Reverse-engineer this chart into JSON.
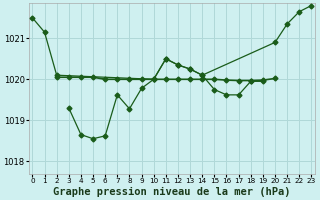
{
  "title": "Graphe pression niveau de la mer (hPa)",
  "background_color": "#cff0f0",
  "grid_color": "#b0d8d8",
  "line_color": "#1a5c1a",
  "ylim": [
    1017.7,
    1021.85
  ],
  "xlim": [
    -0.3,
    23.3
  ],
  "yticks": [
    1018,
    1019,
    1020,
    1021
  ],
  "xticks": [
    0,
    1,
    2,
    3,
    4,
    5,
    6,
    7,
    8,
    9,
    10,
    11,
    12,
    13,
    14,
    15,
    16,
    17,
    18,
    19,
    20,
    21,
    22,
    23
  ],
  "seriesA_x": [
    0,
    1,
    2,
    10,
    11,
    12,
    13,
    14,
    20,
    21,
    22,
    23
  ],
  "seriesA_y": [
    1021.5,
    1021.15,
    1020.1,
    1020.0,
    1020.5,
    1020.35,
    1020.25,
    1020.1,
    1020.9,
    1021.35,
    1021.65,
    1021.8
  ],
  "seriesB_x": [
    2,
    3,
    4,
    5,
    6,
    7,
    8,
    9,
    10,
    11,
    12,
    13,
    14,
    15,
    16,
    17,
    18,
    19,
    20
  ],
  "seriesB_y": [
    1020.05,
    1020.05,
    1020.05,
    1020.05,
    1020.0,
    1020.0,
    1020.0,
    1020.0,
    1020.0,
    1020.0,
    1020.0,
    1020.0,
    1020.0,
    1020.0,
    1019.98,
    1019.97,
    1019.97,
    1019.98,
    1020.02
  ],
  "seriesC_x": [
    3,
    4,
    5,
    6,
    7,
    8,
    9,
    10,
    11,
    12,
    13,
    14,
    15,
    16,
    17,
    18,
    19
  ],
  "seriesC_y": [
    1019.3,
    1018.65,
    1018.55,
    1018.62,
    1019.62,
    1019.28,
    1019.78,
    1020.0,
    1020.5,
    1020.35,
    1020.25,
    1020.1,
    1019.75,
    1019.62,
    1019.62,
    1019.95,
    1019.95
  ],
  "font_size_label": 7.5,
  "font_size_tick": 6,
  "marker_size": 2.5
}
